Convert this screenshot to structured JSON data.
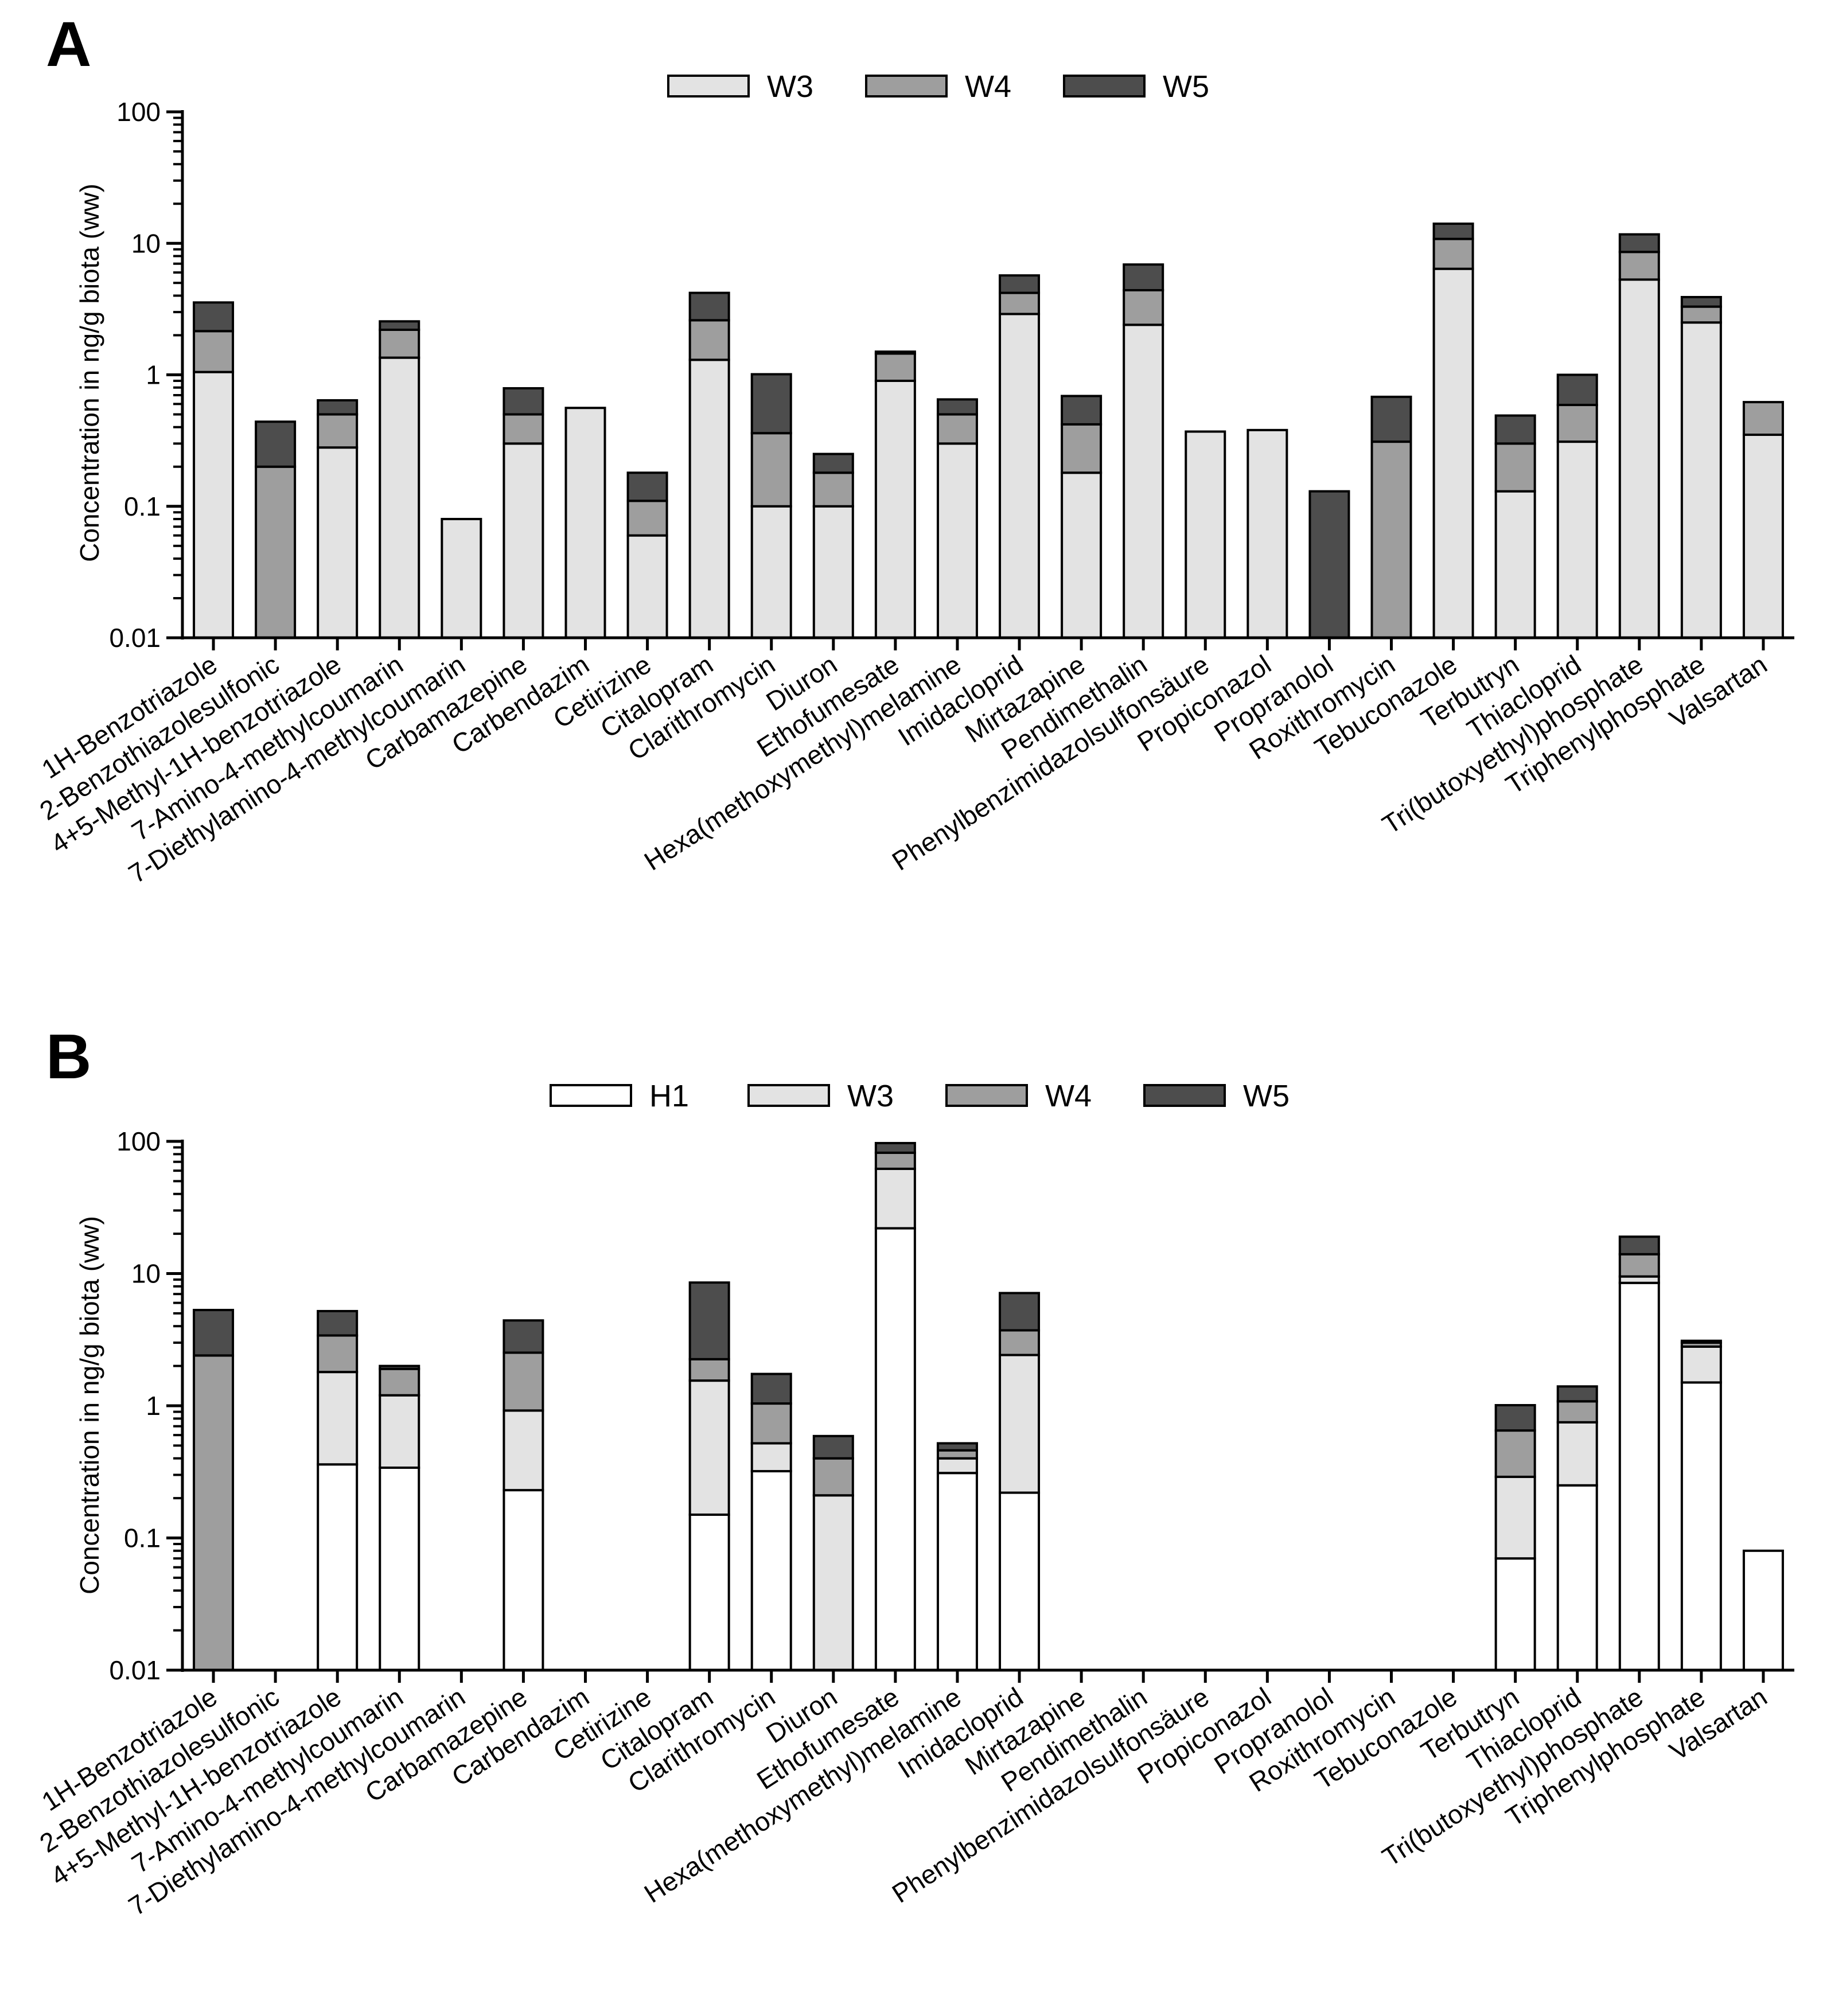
{
  "chart_data": [
    {
      "panel": "A",
      "type": "bar",
      "stacked": true,
      "ylabel": "Concentration in ng/g biota (ww)",
      "yscale": "log",
      "ylim": [
        0.01,
        100
      ],
      "yticks": [
        "0.01",
        "0.1",
        "1",
        "10",
        "100"
      ],
      "legend_position": "top-center",
      "categories": [
        "1H-Benzotriazole",
        "2-Benzothiazolesulfonic",
        "4+5-Methyl-1H-benzotriazole",
        "7-Amino-4-methylcoumarin",
        "7-Diethylamino-4-methylcoumarin",
        "Carbamazepine",
        "Carbendazim",
        "Cetirizine",
        "Citalopram",
        "Clarithromycin",
        "Diuron",
        "Ethofumesate",
        "Hexa(methoxymethyl)melamine",
        "Imidacloprid",
        "Mirtazapine",
        "Pendimethalin",
        "Phenylbenzimidazolsulfonsäure",
        "Propiconazol",
        "Propranolol",
        "Roxithromycin",
        "Tebuconazole",
        "Terbutryn",
        "Thiacloprid",
        "Tri(butoxyethyl)phosphate",
        "Triphenylphosphate",
        "Valsartan"
      ],
      "series": [
        {
          "name": "W3",
          "color": "#e3e3e3",
          "values": [
            1.05,
            0,
            0.28,
            1.35,
            0.08,
            0.3,
            0.56,
            0.06,
            1.3,
            0.1,
            0.1,
            0.9,
            0.3,
            2.9,
            0.18,
            2.4,
            0.37,
            0.38,
            0,
            0,
            6.4,
            0.13,
            0.31,
            5.3,
            2.5,
            0.35
          ]
        },
        {
          "name": "W4",
          "color": "#9e9e9e",
          "values": [
            1.1,
            0.2,
            0.22,
            0.85,
            0,
            0.2,
            0,
            0.05,
            1.3,
            0.26,
            0.08,
            0.55,
            0.2,
            1.3,
            0.24,
            2.0,
            0,
            0,
            0,
            0.31,
            4.4,
            0.17,
            0.28,
            3.3,
            0.8,
            0.27
          ]
        },
        {
          "name": "W5",
          "color": "#4d4d4d",
          "values": [
            1.4,
            0.24,
            0.14,
            0.35,
            0,
            0.29,
            0,
            0.07,
            1.6,
            0.65,
            0.07,
            0.05,
            0.15,
            1.5,
            0.27,
            2.5,
            0,
            0,
            0.13,
            0.37,
            3.3,
            0.19,
            0.41,
            3.1,
            0.6,
            0
          ]
        }
      ]
    },
    {
      "panel": "B",
      "type": "bar",
      "stacked": true,
      "ylabel": "Concentration in ng/g biota (ww)",
      "yscale": "log",
      "ylim": [
        0.01,
        100
      ],
      "yticks": [
        "0.01",
        "0.1",
        "1",
        "10",
        "100"
      ],
      "legend_position": "top-center",
      "categories": [
        "1H-Benzotriazole",
        "2-Benzothiazolesulfonic",
        "4+5-Methyl-1H-benzotriazole",
        "7-Amino-4-methylcoumarin",
        "7-Diethylamino-4-methylcoumarin",
        "Carbamazepine",
        "Carbendazim",
        "Cetirizine",
        "Citalopram",
        "Clarithromycin",
        "Diuron",
        "Ethofumesate",
        "Hexa(methoxymethyl)melamine",
        "Imidacloprid",
        "Mirtazapine",
        "Pendimethalin",
        "Phenylbenzimidazolsulfonsäure",
        "Propiconazol",
        "Propranolol",
        "Roxithromycin",
        "Tebuconazole",
        "Terbutryn",
        "Thiacloprid",
        "Tri(butoxyethyl)phosphate",
        "Triphenylphosphate",
        "Valsartan"
      ],
      "series": [
        {
          "name": "H1",
          "color": "#ffffff",
          "values": [
            0,
            0,
            0.36,
            0.34,
            0,
            0.23,
            0,
            0,
            0.15,
            0.32,
            0,
            22,
            0.31,
            0.22,
            0,
            0,
            0,
            0,
            0,
            0,
            0,
            0.07,
            0.25,
            8.5,
            1.5,
            0.08
          ]
        },
        {
          "name": "W3",
          "color": "#e3e3e3",
          "values": [
            0,
            0,
            1.44,
            0.86,
            0,
            0.69,
            0,
            0,
            1.4,
            0.2,
            0.21,
            40,
            0.09,
            2.2,
            0,
            0,
            0,
            0,
            0,
            0,
            0,
            0.22,
            0.5,
            1.0,
            1.3,
            0
          ]
        },
        {
          "name": "W4",
          "color": "#9e9e9e",
          "values": [
            2.4,
            0,
            1.6,
            0.7,
            0,
            1.6,
            0,
            0,
            0.7,
            0.52,
            0.19,
            20,
            0.06,
            1.3,
            0,
            0,
            0,
            0,
            0,
            0,
            0,
            0.36,
            0.33,
            4.5,
            0.2,
            0
          ]
        },
        {
          "name": "W5",
          "color": "#4d4d4d",
          "values": [
            2.9,
            0,
            1.8,
            0.1,
            0,
            1.9,
            0,
            0,
            6.3,
            0.7,
            0.19,
            15,
            0.06,
            3.4,
            0,
            0,
            0,
            0,
            0,
            0,
            0,
            0.36,
            0.32,
            5.0,
            0.1,
            0
          ]
        }
      ]
    }
  ]
}
